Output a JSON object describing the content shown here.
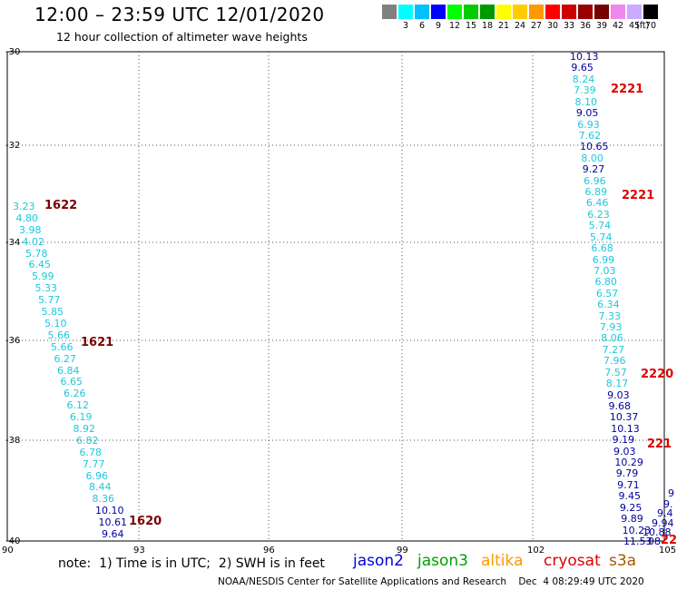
{
  "header": {
    "title": "12:00 – 23:59 UTC 12/01/2020",
    "subtitle": "12 hour collection of altimeter wave heights"
  },
  "legend": {
    "unit_label": "(ft)",
    "items": [
      {
        "label": "",
        "color": "#808080"
      },
      {
        "label": "3",
        "color": "#00ffff"
      },
      {
        "label": "6",
        "color": "#00c0ff"
      },
      {
        "label": "9",
        "color": "#0000ff"
      },
      {
        "label": "12",
        "color": "#00ff00"
      },
      {
        "label": "15",
        "color": "#00cc00"
      },
      {
        "label": "18",
        "color": "#009900"
      },
      {
        "label": "21",
        "color": "#ffff00"
      },
      {
        "label": "24",
        "color": "#ffcc00"
      },
      {
        "label": "27",
        "color": "#ff9900"
      },
      {
        "label": "30",
        "color": "#ff0000"
      },
      {
        "label": "33",
        "color": "#cc0000"
      },
      {
        "label": "36",
        "color": "#990000"
      },
      {
        "label": "39",
        "color": "#770000"
      },
      {
        "label": "42",
        "color": "#ee88ee"
      },
      {
        "label": "45",
        "color": "#ccaaff"
      },
      {
        "label": "70",
        "color": "#000000"
      }
    ]
  },
  "map": {
    "lat_labels": [
      "-30",
      "-32",
      "-34",
      "-36",
      "-38",
      "-40"
    ],
    "lon_labels": [
      "90",
      "93",
      "96",
      "99",
      "102",
      "105"
    ],
    "colors": {
      "light": "#1ec8dc",
      "dark": "#00009c",
      "time_west": "#7a0000",
      "time_east": "#e00000"
    },
    "west_track": [
      {
        "v": "3.23",
        "c": "light"
      },
      {
        "v": "4.80",
        "c": "light"
      },
      {
        "v": "3.98",
        "c": "light"
      },
      {
        "v": "4.02",
        "c": "light"
      },
      {
        "v": "5.78",
        "c": "light"
      },
      {
        "v": "6.45",
        "c": "light"
      },
      {
        "v": "5.99",
        "c": "light"
      },
      {
        "v": "5.33",
        "c": "light"
      },
      {
        "v": "5.77",
        "c": "light"
      },
      {
        "v": "5.85",
        "c": "light"
      },
      {
        "v": "5.10",
        "c": "light"
      },
      {
        "v": "5.66",
        "c": "light"
      },
      {
        "v": "5.66",
        "c": "light"
      },
      {
        "v": "6.27",
        "c": "light"
      },
      {
        "v": "6.84",
        "c": "light"
      },
      {
        "v": "6.65",
        "c": "light"
      },
      {
        "v": "6.26",
        "c": "light"
      },
      {
        "v": "6.12",
        "c": "light"
      },
      {
        "v": "6.19",
        "c": "light"
      },
      {
        "v": "8.92",
        "c": "light"
      },
      {
        "v": "6.82",
        "c": "light"
      },
      {
        "v": "6.78",
        "c": "light"
      },
      {
        "v": "7.77",
        "c": "light"
      },
      {
        "v": "6.96",
        "c": "light"
      },
      {
        "v": "8.44",
        "c": "light"
      },
      {
        "v": "8.36",
        "c": "light"
      },
      {
        "v": "10.10",
        "c": "dark"
      },
      {
        "v": "10.61",
        "c": "dark"
      },
      {
        "v": "9.64",
        "c": "dark"
      }
    ],
    "west_times": [
      "1622",
      "1621",
      "1620"
    ],
    "east_track": [
      {
        "v": "10.13",
        "c": "dark"
      },
      {
        "v": "9.65",
        "c": "dark"
      },
      {
        "v": "8.24",
        "c": "light"
      },
      {
        "v": "7.39",
        "c": "light"
      },
      {
        "v": "8.10",
        "c": "light"
      },
      {
        "v": "9.05",
        "c": "dark"
      },
      {
        "v": "6.93",
        "c": "light"
      },
      {
        "v": "7.62",
        "c": "light"
      },
      {
        "v": "10.65",
        "c": "dark"
      },
      {
        "v": "8.00",
        "c": "light"
      },
      {
        "v": "9.27",
        "c": "dark"
      },
      {
        "v": "6.96",
        "c": "light"
      },
      {
        "v": "6.89",
        "c": "light"
      },
      {
        "v": "6.46",
        "c": "light"
      },
      {
        "v": "6.23",
        "c": "light"
      },
      {
        "v": "5.74",
        "c": "light"
      },
      {
        "v": "5.74",
        "c": "light"
      },
      {
        "v": "6.68",
        "c": "light"
      },
      {
        "v": "6.99",
        "c": "light"
      },
      {
        "v": "7.03",
        "c": "light"
      },
      {
        "v": "6.80",
        "c": "light"
      },
      {
        "v": "6.57",
        "c": "light"
      },
      {
        "v": "6.34",
        "c": "light"
      },
      {
        "v": "7.33",
        "c": "light"
      },
      {
        "v": "7.93",
        "c": "light"
      },
      {
        "v": "8.06",
        "c": "light"
      },
      {
        "v": "7.27",
        "c": "light"
      },
      {
        "v": "7.96",
        "c": "light"
      },
      {
        "v": "7.57",
        "c": "light"
      },
      {
        "v": "8.17",
        "c": "light"
      },
      {
        "v": "9.03",
        "c": "dark"
      },
      {
        "v": "9.68",
        "c": "dark"
      },
      {
        "v": "10.37",
        "c": "dark"
      },
      {
        "v": "10.13",
        "c": "dark"
      },
      {
        "v": "9.19",
        "c": "dark"
      },
      {
        "v": "9.03",
        "c": "dark"
      },
      {
        "v": "10.29",
        "c": "dark"
      },
      {
        "v": "9.79",
        "c": "dark"
      },
      {
        "v": "9.71",
        "c": "dark"
      },
      {
        "v": "9.45",
        "c": "dark"
      },
      {
        "v": "9.25",
        "c": "dark"
      },
      {
        "v": "9.89",
        "c": "dark"
      },
      {
        "v": "10.23",
        "c": "dark"
      },
      {
        "v": "11.53",
        "c": "dark"
      }
    ],
    "east_times": [
      "2221",
      "2221",
      "2220",
      "221"
    ],
    "edge_fragments": [
      "9",
      "9.",
      "9.4",
      "9.94",
      "10.88",
      "08",
      "22"
    ]
  },
  "footer": {
    "note": "note:  1) Time is in UTC;  2) SWH is in feet",
    "satellites": [
      {
        "name": "jason2",
        "color": "#0000dd"
      },
      {
        "name": "jason3",
        "color": "#00a000"
      },
      {
        "name": "altika",
        "color": "#ff9900"
      },
      {
        "name": "cryosat",
        "color": "#dd0000"
      },
      {
        "name": "s3a",
        "color": "#aa5500"
      }
    ],
    "credit": "NOAA/NESDIS Center for Satellite Applications and Research    Dec  4 08:29:49 UTC 2020"
  }
}
